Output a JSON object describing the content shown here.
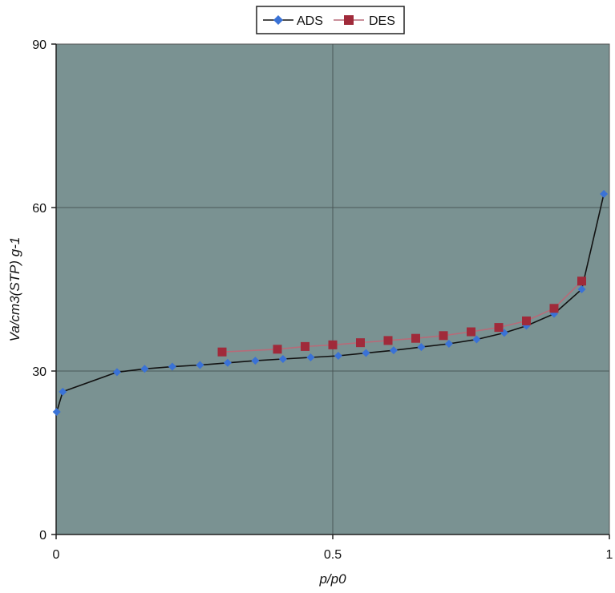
{
  "chart_data": {
    "type": "line",
    "title": "",
    "xlabel": "p/p0",
    "ylabel": "Va/cm3(STP) g-1",
    "x_ticks": [
      "0",
      "0.5",
      "1"
    ],
    "y_ticks": [
      "0",
      "30",
      "60",
      "90"
    ],
    "xlim": [
      0,
      1
    ],
    "ylim": [
      0,
      90
    ],
    "grid": true,
    "legend_position": "top-center",
    "plot_background": "#7a9292",
    "series": [
      {
        "name": "ADS",
        "color": "#3a72d6",
        "line_color": "#111111",
        "marker": "diamond",
        "x": [
          0.001,
          0.012,
          0.11,
          0.16,
          0.21,
          0.26,
          0.31,
          0.36,
          0.41,
          0.46,
          0.51,
          0.56,
          0.61,
          0.66,
          0.71,
          0.76,
          0.81,
          0.85,
          0.9,
          0.95,
          0.99
        ],
        "y": [
          22.5,
          26.2,
          29.8,
          30.4,
          30.8,
          31.1,
          31.5,
          31.9,
          32.2,
          32.5,
          32.8,
          33.3,
          33.8,
          34.4,
          35.0,
          35.8,
          37.0,
          38.3,
          40.5,
          45.0,
          62.5
        ]
      },
      {
        "name": "DES",
        "color": "#a02a3a",
        "line_color": "#b86a78",
        "marker": "square",
        "x": [
          0.3,
          0.4,
          0.45,
          0.5,
          0.55,
          0.6,
          0.65,
          0.7,
          0.75,
          0.8,
          0.85,
          0.9,
          0.95
        ],
        "y": [
          33.5,
          34.0,
          34.5,
          34.8,
          35.2,
          35.6,
          36.0,
          36.5,
          37.2,
          38.0,
          39.2,
          41.5,
          46.5
        ]
      }
    ]
  }
}
